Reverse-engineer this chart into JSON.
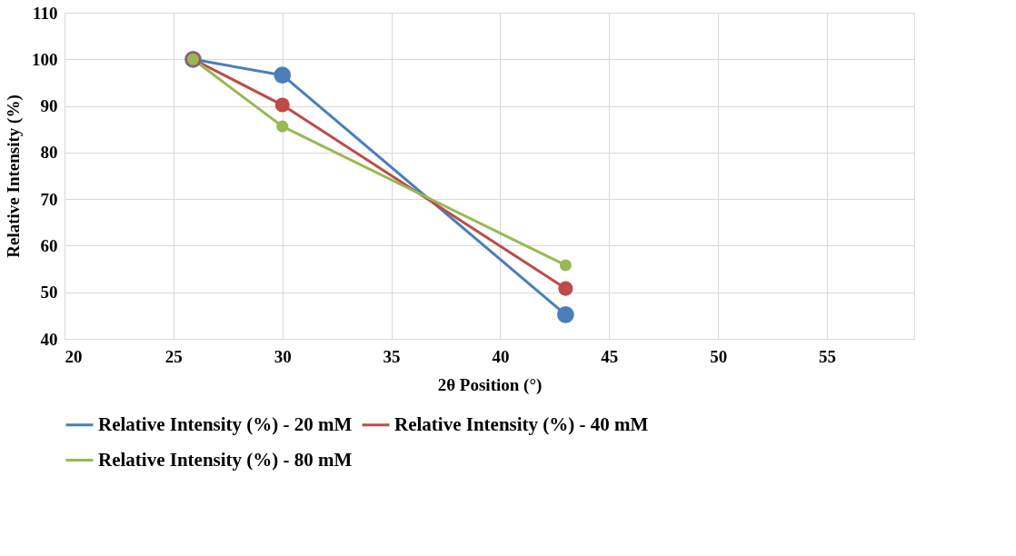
{
  "chart_data": {
    "type": "line",
    "xlabel": "2θ Position (°)",
    "ylabel": "Relative Intensity (%)",
    "x": [
      25.9,
      30,
      43
    ],
    "series": [
      {
        "name": "Relative Intensity (%) - 20 mM",
        "color": "#4a7ebb",
        "values": [
          100,
          96.6,
          45.2
        ]
      },
      {
        "name": "Relative Intensity (%) - 40 mM",
        "color": "#be4b48",
        "values": [
          100,
          90.2,
          50.8
        ]
      },
      {
        "name": "Relative Intensity (%) - 80 mM",
        "color": "#98b954",
        "values": [
          100,
          85.6,
          55.8
        ]
      }
    ],
    "xlim": [
      20,
      59
    ],
    "xticks": [
      20,
      25,
      30,
      35,
      40,
      45,
      50,
      55
    ],
    "ylim": [
      40,
      110
    ],
    "yticks": [
      40,
      50,
      60,
      70,
      80,
      90,
      100,
      110
    ],
    "grid": true,
    "legend": "bottom",
    "marker": "circle",
    "line_style": "solid"
  }
}
